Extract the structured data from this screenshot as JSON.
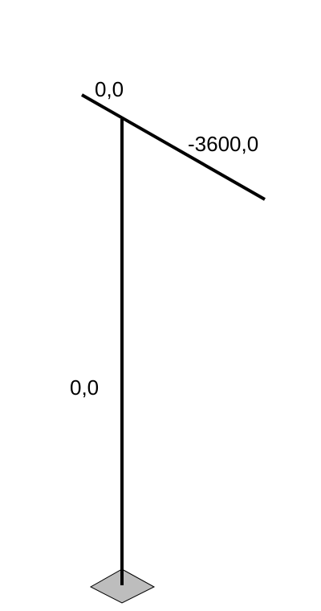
{
  "diagram": {
    "labels": {
      "beam_left_end": "0,0",
      "beam_right_end": "-3600,0",
      "column_mid": "0,0"
    },
    "colors": {
      "member": "#000000",
      "support_fill": "#bdbdbd",
      "support_stroke": "#000000",
      "background": "#ffffff"
    }
  }
}
